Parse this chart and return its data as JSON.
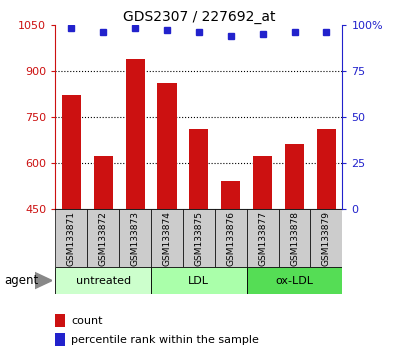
{
  "title": "GDS2307 / 227692_at",
  "samples": [
    "GSM133871",
    "GSM133872",
    "GSM133873",
    "GSM133874",
    "GSM133875",
    "GSM133876",
    "GSM133877",
    "GSM133878",
    "GSM133879"
  ],
  "counts": [
    820,
    622,
    940,
    860,
    710,
    540,
    622,
    660,
    710
  ],
  "percentiles": [
    98,
    96,
    98,
    97,
    96,
    94,
    95,
    96,
    96
  ],
  "ylim_left": [
    450,
    1050
  ],
  "ylim_right": [
    0,
    100
  ],
  "yticks_left": [
    450,
    600,
    750,
    900,
    1050
  ],
  "yticks_right": [
    0,
    25,
    50,
    75,
    100
  ],
  "bar_color": "#cc1111",
  "dot_color": "#2222cc",
  "groups": [
    {
      "label": "untreated",
      "indices": [
        0,
        1,
        2
      ],
      "color": "#ccffcc"
    },
    {
      "label": "LDL",
      "indices": [
        3,
        4,
        5
      ],
      "color": "#aaffaa"
    },
    {
      "label": "ox-LDL",
      "indices": [
        6,
        7,
        8
      ],
      "color": "#55dd55"
    }
  ],
  "left_axis_color": "#cc1111",
  "right_axis_color": "#2222cc",
  "sample_box_color": "#cccccc",
  "agent_label": "agent",
  "legend_count_label": "count",
  "legend_pct_label": "percentile rank within the sample",
  "grid_lines": [
    600,
    750,
    900
  ],
  "bar_width": 0.6
}
